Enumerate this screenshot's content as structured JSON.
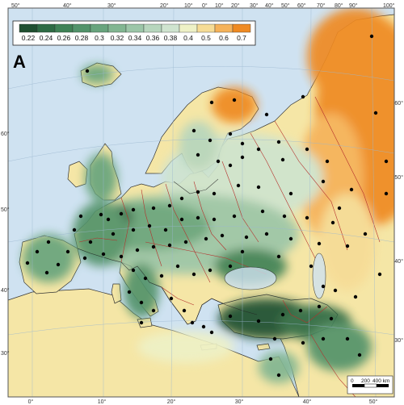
{
  "panel_label": "A",
  "legend": {
    "values": [
      "0.22",
      "0.24",
      "0.26",
      "0.28",
      "0.3",
      "0.32",
      "0.34",
      "0.36",
      "0.38",
      "0.4",
      "0.5",
      "0.6",
      "0.7"
    ],
    "colors": [
      "#1f4f30",
      "#2e6b44",
      "#3f8256",
      "#52936a",
      "#68a47d",
      "#82b692",
      "#9cc6a8",
      "#b7d6bd",
      "#cfe4cf",
      "#eef1c6",
      "#f6dc96",
      "#f5b25a",
      "#ef8a22"
    ]
  },
  "graticule": {
    "top": [
      "50°",
      "40°",
      "30°",
      "20°",
      "10°",
      "0°",
      "10°",
      "20°",
      "30°",
      "40°",
      "50°",
      "60°",
      "70°",
      "80°",
      "90°",
      "100°"
    ],
    "left": [
      "60°",
      "50°",
      "40°",
      "30°"
    ],
    "right": [
      "60°",
      "50°",
      "40°",
      "30°"
    ],
    "bottom": [
      "0°",
      "10°",
      "20°",
      "30°",
      "40°",
      "50°"
    ]
  },
  "scale_bar": {
    "ticks": [
      "0",
      "200",
      "400 km"
    ]
  },
  "colors": {
    "sea": "#cfe2f1",
    "land_low": "#f5e6a6",
    "outline": "#222222",
    "border": "#b5302c",
    "point": "#000000"
  }
}
